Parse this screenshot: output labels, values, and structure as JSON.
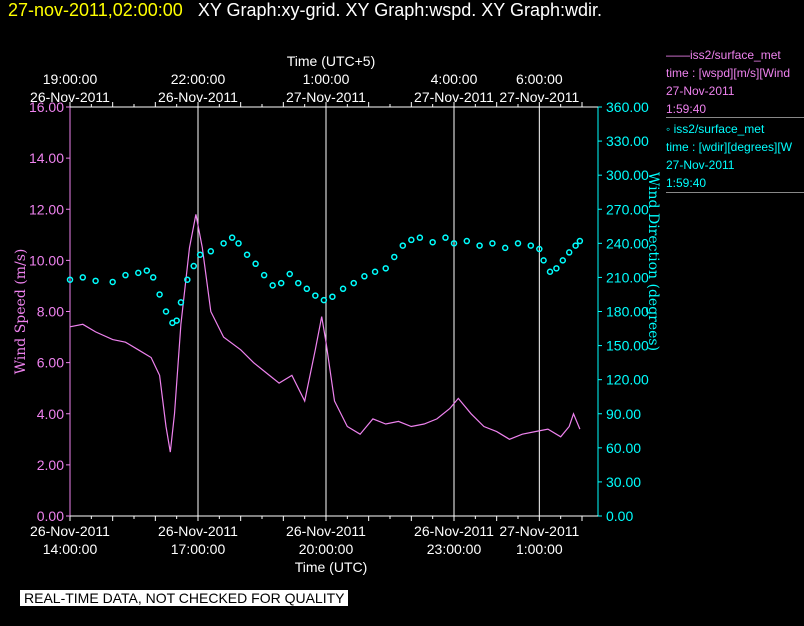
{
  "header": {
    "date": "27-nov-2011,02:00:00",
    "graphs": "XY Graph:xy-grid.  XY Graph:wspd.  XY Graph:wdir."
  },
  "legend": {
    "wspd": {
      "title": "iss2/surface_met",
      "var": "time : [wspd][m/s][Wind",
      "date": "27-Nov-2011",
      "time": "1:59:40"
    },
    "wdir": {
      "title": "iss2/surface_met",
      "var": "time : [wdir][degrees][W",
      "date": "27-Nov-2011",
      "time": "1:59:40"
    }
  },
  "disclaimer": "REAL-TIME DATA, NOT CHECKED FOR QUALITY",
  "colors": {
    "wspd": "#ee82ee",
    "wdir": "#00ffff",
    "grid": "#ffffff",
    "title_date": "#ffff00"
  },
  "chart_data": {
    "type": "line",
    "xlabel_bottom": "Time (UTC)",
    "xlabel_top": "Time (UTC+5)",
    "ylabel_left": "Wind Speed (m/s)",
    "ylabel_right": "Wind Direction (degrees)",
    "x_range_utc_hours": [
      14.0,
      26.0
    ],
    "ylim_left": [
      0,
      16
    ],
    "ylim_right": [
      0,
      360
    ],
    "grid": "vertical",
    "bottom_ticks": [
      {
        "x": 14,
        "date": "26-Nov-2011",
        "time": "14:00:00"
      },
      {
        "x": 17,
        "date": "26-Nov-2011",
        "time": "17:00:00"
      },
      {
        "x": 20,
        "date": "26-Nov-2011",
        "time": "20:00:00"
      },
      {
        "x": 23,
        "date": "26-Nov-2011",
        "time": "23:00:00"
      },
      {
        "x": 25,
        "date": "27-Nov-2011",
        "time": "1:00:00"
      }
    ],
    "top_ticks": [
      {
        "x": 14,
        "time": "19:00:00",
        "date": "26-Nov-2011"
      },
      {
        "x": 17,
        "time": "22:00:00",
        "date": "26-Nov-2011"
      },
      {
        "x": 20,
        "time": "1:00:00",
        "date": "27-Nov-2011"
      },
      {
        "x": 23,
        "time": "4:00:00",
        "date": "27-Nov-2011"
      },
      {
        "x": 25,
        "time": "6:00:00",
        "date": "27-Nov-2011"
      }
    ],
    "left_ticks": [
      "0.00",
      "2.00",
      "4.00",
      "6.00",
      "8.00",
      "10.00",
      "12.00",
      "14.00",
      "16.00"
    ],
    "right_ticks": [
      "0.00",
      "30.00",
      "60.00",
      "90.00",
      "120.00",
      "150.00",
      "180.00",
      "210.00",
      "240.00",
      "270.00",
      "300.00",
      "330.00",
      "360.00"
    ],
    "series": [
      {
        "key": "wspd",
        "style": "line",
        "points": [
          [
            14.0,
            7.4
          ],
          [
            14.3,
            7.5
          ],
          [
            14.6,
            7.2
          ],
          [
            15.0,
            6.9
          ],
          [
            15.3,
            6.8
          ],
          [
            15.6,
            6.5
          ],
          [
            15.9,
            6.2
          ],
          [
            16.1,
            5.5
          ],
          [
            16.25,
            3.5
          ],
          [
            16.35,
            2.5
          ],
          [
            16.45,
            4.0
          ],
          [
            16.6,
            7.5
          ],
          [
            16.8,
            10.5
          ],
          [
            16.95,
            11.8
          ],
          [
            17.1,
            10.5
          ],
          [
            17.3,
            8.0
          ],
          [
            17.6,
            7.0
          ],
          [
            18.0,
            6.5
          ],
          [
            18.3,
            6.0
          ],
          [
            18.6,
            5.6
          ],
          [
            18.9,
            5.2
          ],
          [
            19.2,
            5.5
          ],
          [
            19.5,
            4.5
          ],
          [
            19.75,
            6.5
          ],
          [
            19.9,
            7.8
          ],
          [
            20.0,
            6.8
          ],
          [
            20.2,
            4.5
          ],
          [
            20.5,
            3.5
          ],
          [
            20.8,
            3.2
          ],
          [
            21.1,
            3.8
          ],
          [
            21.4,
            3.6
          ],
          [
            21.7,
            3.7
          ],
          [
            22.0,
            3.5
          ],
          [
            22.3,
            3.6
          ],
          [
            22.6,
            3.8
          ],
          [
            22.9,
            4.2
          ],
          [
            23.1,
            4.6
          ],
          [
            23.4,
            4.0
          ],
          [
            23.7,
            3.5
          ],
          [
            24.0,
            3.3
          ],
          [
            24.3,
            3.0
          ],
          [
            24.6,
            3.2
          ],
          [
            24.9,
            3.3
          ],
          [
            25.2,
            3.4
          ],
          [
            25.5,
            3.1
          ],
          [
            25.7,
            3.5
          ],
          [
            25.8,
            4.0
          ],
          [
            25.95,
            3.4
          ]
        ]
      },
      {
        "key": "wdir",
        "style": "points",
        "points": [
          [
            14.0,
            208
          ],
          [
            14.3,
            210
          ],
          [
            14.6,
            207
          ],
          [
            15.0,
            206
          ],
          [
            15.3,
            212
          ],
          [
            15.6,
            214
          ],
          [
            15.8,
            216
          ],
          [
            15.95,
            210
          ],
          [
            16.1,
            195
          ],
          [
            16.25,
            180
          ],
          [
            16.4,
            170
          ],
          [
            16.5,
            172
          ],
          [
            16.6,
            188
          ],
          [
            16.75,
            208
          ],
          [
            16.9,
            220
          ],
          [
            17.05,
            230
          ],
          [
            17.3,
            233
          ],
          [
            17.6,
            240
          ],
          [
            17.8,
            245
          ],
          [
            17.95,
            240
          ],
          [
            18.15,
            230
          ],
          [
            18.35,
            222
          ],
          [
            18.55,
            212
          ],
          [
            18.75,
            203
          ],
          [
            18.95,
            205
          ],
          [
            19.15,
            213
          ],
          [
            19.35,
            205
          ],
          [
            19.55,
            200
          ],
          [
            19.75,
            194
          ],
          [
            19.95,
            190
          ],
          [
            20.15,
            193
          ],
          [
            20.4,
            200
          ],
          [
            20.65,
            205
          ],
          [
            20.9,
            211
          ],
          [
            21.15,
            215
          ],
          [
            21.4,
            218
          ],
          [
            21.6,
            228
          ],
          [
            21.8,
            238
          ],
          [
            22.0,
            243
          ],
          [
            22.2,
            245
          ],
          [
            22.5,
            241
          ],
          [
            22.8,
            245
          ],
          [
            23.0,
            240
          ],
          [
            23.3,
            242
          ],
          [
            23.6,
            238
          ],
          [
            23.9,
            240
          ],
          [
            24.2,
            236
          ],
          [
            24.5,
            240
          ],
          [
            24.8,
            238
          ],
          [
            25.0,
            235
          ],
          [
            25.1,
            225
          ],
          [
            25.25,
            215
          ],
          [
            25.4,
            218
          ],
          [
            25.55,
            225
          ],
          [
            25.7,
            232
          ],
          [
            25.85,
            238
          ],
          [
            25.95,
            242
          ]
        ]
      }
    ]
  }
}
